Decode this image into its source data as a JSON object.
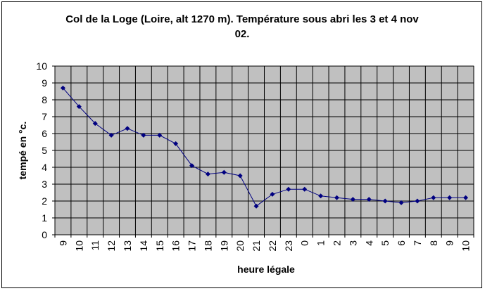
{
  "chart_data": {
    "type": "line",
    "title_line1": "Col de la Loge (Loire, alt 1270 m). Température sous abri les 3 et 4 nov",
    "title_line2": "02.",
    "xlabel": "heure légale",
    "ylabel": "tempé en °c.",
    "ylim": [
      0,
      10
    ],
    "y_ticks": [
      0,
      1,
      2,
      3,
      4,
      5,
      6,
      7,
      8,
      9,
      10
    ],
    "grid": true,
    "plot_background": "#c0c0c0",
    "line_color": "#000080",
    "categories": [
      "9",
      "10",
      "11",
      "12",
      "13",
      "14",
      "15",
      "16",
      "17",
      "18",
      "19",
      "20",
      "21",
      "22",
      "23",
      "0",
      "1",
      "2",
      "3",
      "4",
      "5",
      "6",
      "7",
      "8",
      "9",
      "10"
    ],
    "series": [
      {
        "values": [
          8.7,
          7.6,
          6.6,
          5.9,
          6.3,
          5.9,
          5.9,
          5.4,
          4.1,
          3.6,
          3.7,
          3.5,
          1.7,
          2.4,
          2.7,
          2.7,
          2.3,
          2.2,
          2.1,
          2.1,
          2.0,
          1.9,
          2.0,
          2.2,
          2.2,
          2.2
        ]
      }
    ]
  }
}
